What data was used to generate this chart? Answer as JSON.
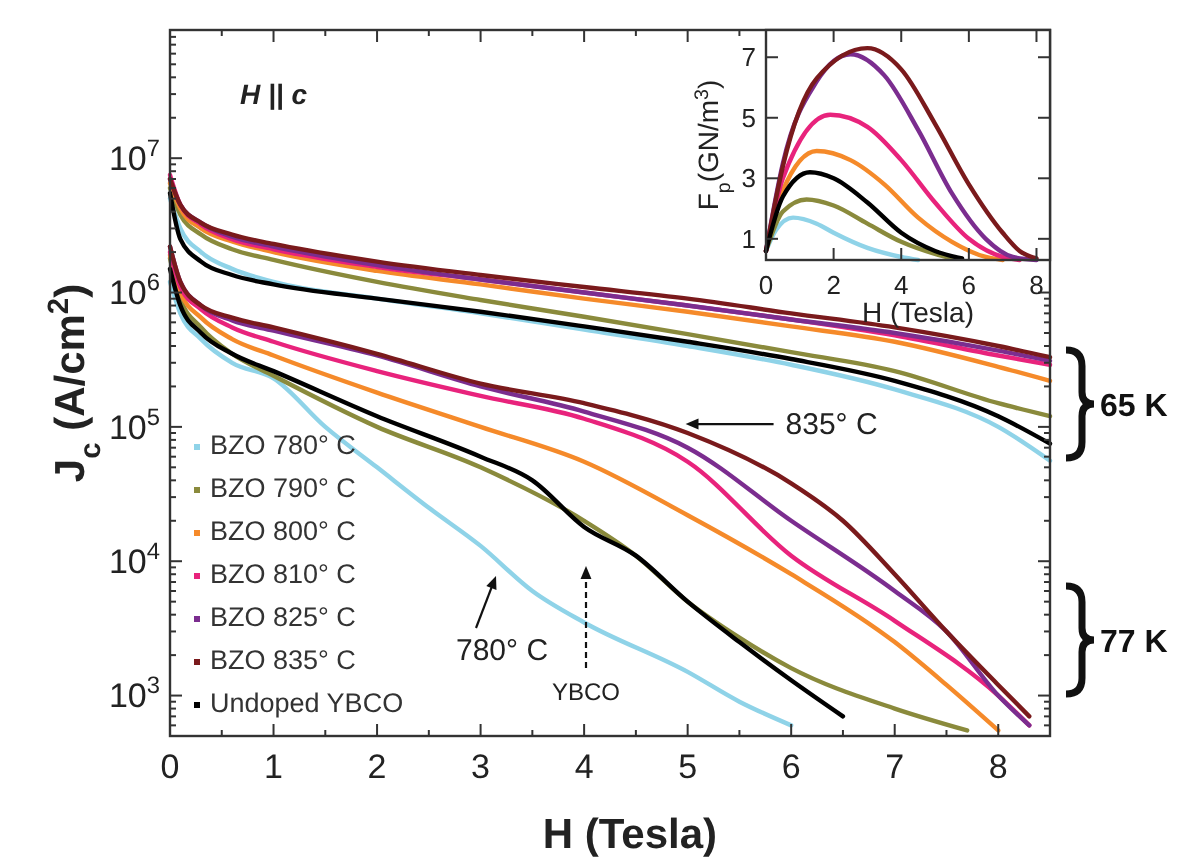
{
  "chart_data": [
    {
      "type": "line",
      "xlabel": "H (Tesla)",
      "ylabel": "J$_{c}$ (A/cm$^{2}$)",
      "log": "y",
      "xlim": [
        0,
        8.5
      ],
      "xticks": [
        0,
        1,
        2,
        3,
        4,
        5,
        6,
        7,
        8
      ],
      "ylim": [
        500,
        90000000
      ],
      "yticks": [
        {
          "value": 1000,
          "label": "10$^{3}$"
        },
        {
          "value": 10000,
          "label": "10$^{4}$"
        },
        {
          "value": 100000,
          "label": "10$^{5}$"
        },
        {
          "value": 1000000,
          "label": "10$^{6}$"
        },
        {
          "value": 10000000,
          "label": "10$^{7}$"
        }
      ],
      "legend": "bottom left",
      "annotations": [
        "H || c",
        {
          "text": "835° C",
          "x": 4.98,
          "y": 105000
        },
        "780° C",
        "YBCO",
        "65 K",
        "77 K"
      ],
      "series": [
        {
          "name": "BZO 780° C",
          "color": "#8fd3e8",
          "x": [
            0,
            0.1,
            0.3,
            0.6,
            1,
            2,
            3,
            4,
            5,
            6,
            7,
            8,
            8.5
          ],
          "values": [
            5000000,
            3000000,
            2000000,
            1500000,
            1200000,
            900000,
            700000,
            530000,
            400000,
            290000,
            190000,
            100000,
            56000
          ]
        },
        {
          "name": "BZO 790° C",
          "color": "#8a8a3c",
          "x": [
            0,
            0.1,
            0.3,
            0.6,
            1,
            2,
            3,
            4,
            5,
            6,
            7,
            8,
            8.5
          ],
          "values": [
            6000000,
            3800000,
            2700000,
            2100000,
            1750000,
            1200000,
            880000,
            660000,
            490000,
            360000,
            260000,
            150000,
            120000
          ]
        },
        {
          "name": "BZO 800° C",
          "color": "#f58a2a",
          "x": [
            0,
            0.1,
            0.3,
            0.6,
            1,
            2,
            3,
            4,
            5,
            6,
            7,
            8,
            8.5
          ],
          "values": [
            6500000,
            4200000,
            3000000,
            2400000,
            2000000,
            1450000,
            1150000,
            900000,
            720000,
            560000,
            430000,
            280000,
            220000
          ]
        },
        {
          "name": "BZO 810° C",
          "color": "#e8237c",
          "x": [
            0,
            0.1,
            0.3,
            0.6,
            1,
            2,
            3,
            4,
            5,
            6,
            7,
            8,
            8.5
          ],
          "values": [
            7500000,
            4500000,
            3200000,
            2500000,
            2100000,
            1550000,
            1250000,
            1000000,
            800000,
            630000,
            480000,
            340000,
            290000
          ]
        },
        {
          "name": "BZO 825° C",
          "color": "#7b2d8f",
          "x": [
            0,
            0.1,
            0.3,
            0.6,
            1,
            2,
            3,
            4,
            5,
            6,
            7,
            8,
            8.5
          ],
          "values": [
            7000000,
            4500000,
            3300000,
            2600000,
            2200000,
            1600000,
            1250000,
            1000000,
            800000,
            630000,
            500000,
            370000,
            310000
          ]
        },
        {
          "name": "BZO 835° C",
          "color": "#7a1a1c",
          "x": [
            0,
            0.1,
            0.3,
            0.6,
            1,
            2,
            3,
            4,
            5,
            6,
            7,
            8,
            8.5
          ],
          "values": [
            7000000,
            4500000,
            3300000,
            2700000,
            2300000,
            1700000,
            1350000,
            1100000,
            900000,
            700000,
            550000,
            400000,
            330000
          ]
        },
        {
          "name": "Undoped YBCO",
          "color": "#000000",
          "x": [
            0,
            0.1,
            0.3,
            0.6,
            1,
            2,
            3,
            4,
            5,
            6,
            7,
            8,
            8.5
          ],
          "values": [
            5500000,
            2500000,
            1700000,
            1350000,
            1150000,
            900000,
            720000,
            560000,
            430000,
            320000,
            220000,
            120000,
            75000
          ]
        },
        {
          "color": "#8fd3e8",
          "x": [
            0,
            0.1,
            0.3,
            0.6,
            1,
            1.5,
            2,
            2.5,
            3,
            3.5,
            4,
            5,
            5.5,
            6
          ],
          "values": [
            1200000,
            700000,
            450000,
            300000,
            230000,
            100000,
            50000,
            25000,
            13000,
            6000,
            3500,
            1500,
            900,
            600
          ]
        },
        {
          "color": "#8a8a3c",
          "x": [
            0,
            0.1,
            0.3,
            0.6,
            1,
            2,
            3,
            4,
            4.5,
            5,
            5.5,
            6,
            7,
            7.7
          ],
          "values": [
            1800000,
            900000,
            550000,
            350000,
            240000,
            100000,
            50000,
            20000,
            11000,
            5000,
            2700,
            1600,
            800,
            550
          ]
        },
        {
          "color": "#f58a2a",
          "x": [
            0,
            0.1,
            0.3,
            0.6,
            1,
            2,
            3,
            4,
            5,
            6,
            7,
            7.5,
            8
          ],
          "values": [
            1900000,
            1000000,
            650000,
            450000,
            340000,
            180000,
            100000,
            55000,
            22000,
            8000,
            2500,
            1200,
            550
          ]
        },
        {
          "color": "#e8237c",
          "x": [
            0,
            0.1,
            0.3,
            0.6,
            1,
            2,
            3,
            4,
            5,
            6,
            7,
            8,
            8.3
          ],
          "values": [
            2000000,
            1100000,
            750000,
            550000,
            430000,
            260000,
            170000,
            115000,
            55000,
            11000,
            3600,
            1000,
            600
          ]
        },
        {
          "color": "#7b2d8f",
          "x": [
            0,
            0.1,
            0.3,
            0.6,
            1,
            2,
            3,
            4,
            5,
            6,
            7,
            7.5,
            8,
            8.3
          ],
          "values": [
            2200000,
            1200000,
            800000,
            620000,
            520000,
            340000,
            200000,
            130000,
            70000,
            20000,
            6000,
            3000,
            1000,
            600
          ]
        },
        {
          "color": "#7a1a1c",
          "x": [
            0,
            0.1,
            0.3,
            0.6,
            1,
            2,
            3,
            4,
            5,
            6,
            6.5,
            7,
            7.5,
            8,
            8.3
          ],
          "values": [
            2200000,
            1200000,
            800000,
            650000,
            550000,
            350000,
            210000,
            150000,
            90000,
            38000,
            20000,
            8000,
            3000,
            1200,
            700
          ]
        },
        {
          "color": "#000000",
          "x": [
            0,
            0.1,
            0.3,
            0.6,
            1,
            2,
            3,
            3.5,
            4,
            4.5,
            5,
            5.5,
            6,
            6.5
          ],
          "values": [
            1500000,
            800000,
            500000,
            350000,
            260000,
            120000,
            60000,
            40000,
            18000,
            11000,
            5000,
            2500,
            1300,
            700
          ]
        }
      ]
    },
    {
      "type": "line",
      "xlabel": "H (Tesla)",
      "ylabel": "F$_{p}$(GN/m$^{3}$)",
      "xlim": [
        0,
        8.4
      ],
      "xticks": [
        0,
        2,
        4,
        6,
        8
      ],
      "ylim": [
        0.3,
        7.9
      ],
      "yticks": [
        1,
        3,
        5,
        7
      ],
      "series": [
        {
          "color": "#8fd3e8",
          "x": [
            0,
            0.3,
            0.8,
            1.5,
            2,
            3,
            4,
            4.5
          ],
          "values": [
            0.6,
            1.3,
            1.7,
            1.5,
            1.2,
            0.7,
            0.4,
            0.3
          ]
        },
        {
          "color": "#8a8a3c",
          "x": [
            0,
            0.5,
            1.2,
            2,
            3,
            4,
            5,
            5.5
          ],
          "values": [
            0.6,
            1.9,
            2.3,
            2.1,
            1.5,
            0.9,
            0.5,
            0.35
          ]
        },
        {
          "color": "#f58a2a",
          "x": [
            0,
            0.5,
            1.5,
            2.5,
            3.5,
            4.5,
            5.5,
            6.5,
            7
          ],
          "values": [
            0.6,
            2.6,
            3.9,
            3.6,
            2.8,
            1.7,
            0.9,
            0.4,
            0.3
          ]
        },
        {
          "color": "#e8237c",
          "x": [
            0,
            0.5,
            1.9,
            3,
            4,
            5,
            6,
            7,
            7.5
          ],
          "values": [
            0.6,
            3.0,
            5.1,
            4.7,
            3.6,
            2.2,
            1.0,
            0.4,
            0.3
          ]
        },
        {
          "color": "#7b2d8f",
          "x": [
            0,
            0.5,
            1.5,
            2.5,
            3.5,
            4.5,
            5.5,
            6.5,
            7.3,
            8
          ],
          "values": [
            0.6,
            3.5,
            6.2,
            7.1,
            6.4,
            4.6,
            2.5,
            1.0,
            0.4,
            0.3
          ]
        },
        {
          "color": "#7a1a1c",
          "x": [
            0,
            0.5,
            1.5,
            3,
            4,
            5,
            6,
            7,
            7.5,
            8
          ],
          "values": [
            0.6,
            3.4,
            6.3,
            7.3,
            6.6,
            4.8,
            2.8,
            1.2,
            0.6,
            0.35
          ]
        },
        {
          "color": "#000000",
          "x": [
            0,
            0.5,
            1.3,
            2,
            3,
            4,
            5,
            5.8
          ],
          "values": [
            0.6,
            2.4,
            3.2,
            3.0,
            2.2,
            1.2,
            0.6,
            0.35
          ]
        }
      ]
    }
  ]
}
